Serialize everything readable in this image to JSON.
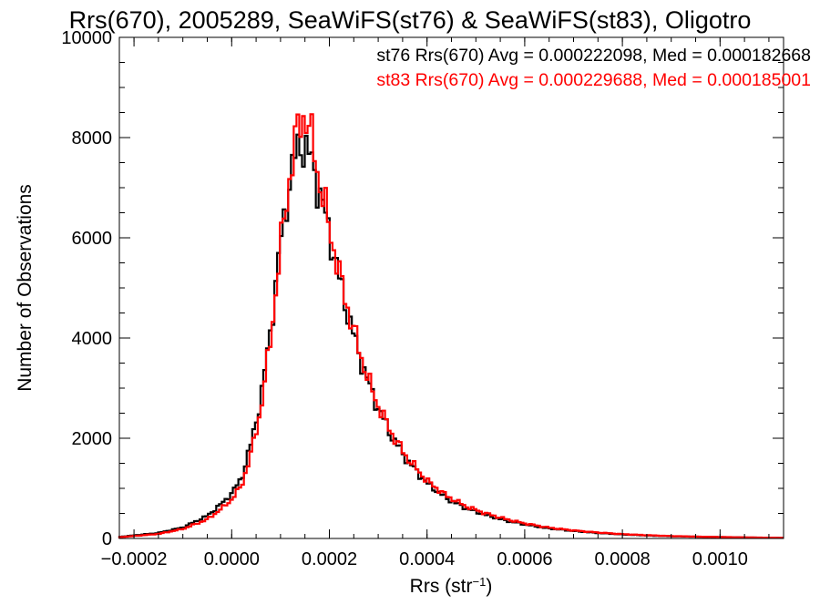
{
  "chart_data": {
    "type": "histogram",
    "title": "Rrs(670), 2005289, SeaWiFS(st76) & SeaWiFS(st83), Oligotro",
    "xlabel": "Rrs (str",
    "xlabel_sup": "−1",
    "xlabel_close": ")",
    "ylabel": "Number of Observations",
    "xlim": [
      -0.00023,
      0.00113
    ],
    "ylim": [
      0,
      10000
    ],
    "grid": false,
    "legend_placement": "top-right",
    "x_ticks": [
      {
        "value": -0.0002,
        "label": "−0.0002"
      },
      {
        "value": 0.0,
        "label": "0.0000"
      },
      {
        "value": 0.0002,
        "label": "0.0002"
      },
      {
        "value": 0.0004,
        "label": "0.0004"
      },
      {
        "value": 0.0006,
        "label": "0.0006"
      },
      {
        "value": 0.0008,
        "label": "0.0008"
      },
      {
        "value": 0.001,
        "label": "0.0010"
      }
    ],
    "y_ticks": [
      {
        "value": 0,
        "label": "0"
      },
      {
        "value": 2000,
        "label": "2000"
      },
      {
        "value": 4000,
        "label": "4000"
      },
      {
        "value": 6000,
        "label": "6000"
      },
      {
        "value": 8000,
        "label": "8000"
      },
      {
        "value": 10000,
        "label": "10000"
      }
    ],
    "legend": [
      {
        "text": "st76 Rrs(670) Avg = 0.000222098, Med = 0.000182668",
        "color": "#000000"
      },
      {
        "text": "st83 Rrs(670) Avg = 0.000229688, Med = 0.000185001",
        "color": "#ff0000"
      }
    ],
    "series": [
      {
        "color": "#000000",
        "points": [
          [
            -0.00023,
            30
          ],
          [
            -0.0002,
            60
          ],
          [
            -0.00015,
            110
          ],
          [
            -0.0001,
            220
          ],
          [
            -5e-05,
            450
          ],
          [
            -2e-05,
            700
          ],
          [
            0.0,
            900
          ],
          [
            2e-05,
            1200
          ],
          [
            4e-05,
            1900
          ],
          [
            6e-05,
            2800
          ],
          [
            8e-05,
            4200
          ],
          [
            0.0001,
            5900
          ],
          [
            0.00012,
            7200
          ],
          [
            0.00013,
            7600
          ],
          [
            0.00014,
            7900
          ],
          [
            0.00015,
            7800
          ],
          [
            0.00016,
            7600
          ],
          [
            0.00017,
            7300
          ],
          [
            0.00018,
            6900
          ],
          [
            0.0002,
            6100
          ],
          [
            0.00022,
            5200
          ],
          [
            0.00024,
            4400
          ],
          [
            0.00026,
            3700
          ],
          [
            0.00028,
            3100
          ],
          [
            0.0003,
            2600
          ],
          [
            0.00033,
            2000
          ],
          [
            0.00036,
            1550
          ],
          [
            0.0004,
            1100
          ],
          [
            0.00044,
            800
          ],
          [
            0.00048,
            600
          ],
          [
            0.00052,
            470
          ],
          [
            0.00056,
            360
          ],
          [
            0.0006,
            280
          ],
          [
            0.00065,
            200
          ],
          [
            0.0007,
            150
          ],
          [
            0.00075,
            110
          ],
          [
            0.0008,
            80
          ],
          [
            0.00085,
            60
          ],
          [
            0.0009,
            45
          ],
          [
            0.00095,
            35
          ],
          [
            0.001,
            28
          ],
          [
            0.00105,
            20
          ],
          [
            0.0011,
            15
          ],
          [
            0.00113,
            12
          ]
        ]
      },
      {
        "color": "#ff0000",
        "points": [
          [
            -0.00023,
            25
          ],
          [
            -0.0002,
            50
          ],
          [
            -0.00015,
            90
          ],
          [
            -0.0001,
            190
          ],
          [
            -5e-05,
            380
          ],
          [
            -2e-05,
            600
          ],
          [
            0.0,
            780
          ],
          [
            2e-05,
            1050
          ],
          [
            4e-05,
            1700
          ],
          [
            6e-05,
            2600
          ],
          [
            8e-05,
            4000
          ],
          [
            0.0001,
            5800
          ],
          [
            0.00012,
            7300
          ],
          [
            0.00013,
            7900
          ],
          [
            0.00014,
            8300
          ],
          [
            0.00015,
            8500
          ],
          [
            0.00016,
            8100
          ],
          [
            0.00017,
            7700
          ],
          [
            0.00018,
            7100
          ],
          [
            0.0002,
            6200
          ],
          [
            0.00022,
            5300
          ],
          [
            0.00024,
            4500
          ],
          [
            0.00026,
            3800
          ],
          [
            0.00028,
            3150
          ],
          [
            0.0003,
            2650
          ],
          [
            0.00033,
            2050
          ],
          [
            0.00036,
            1600
          ],
          [
            0.0004,
            1150
          ],
          [
            0.00044,
            850
          ],
          [
            0.00048,
            640
          ],
          [
            0.00052,
            500
          ],
          [
            0.00056,
            390
          ],
          [
            0.0006,
            300
          ],
          [
            0.00065,
            215
          ],
          [
            0.0007,
            160
          ],
          [
            0.00075,
            118
          ],
          [
            0.0008,
            86
          ],
          [
            0.00085,
            65
          ],
          [
            0.0009,
            48
          ],
          [
            0.00095,
            37
          ],
          [
            0.001,
            29
          ],
          [
            0.00105,
            21
          ],
          [
            0.0011,
            16
          ],
          [
            0.00113,
            13
          ]
        ]
      }
    ]
  }
}
